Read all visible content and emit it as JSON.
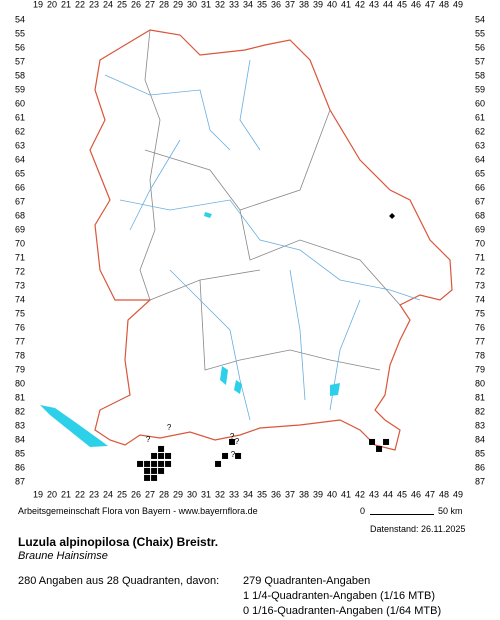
{
  "grid": {
    "x_labels": [
      19,
      20,
      21,
      22,
      23,
      24,
      25,
      26,
      27,
      28,
      29,
      30,
      31,
      32,
      33,
      34,
      35,
      36,
      37,
      38,
      39,
      40,
      41,
      42,
      43,
      44,
      45,
      46,
      47,
      48,
      49
    ],
    "y_labels": [
      54,
      55,
      56,
      57,
      58,
      59,
      60,
      61,
      62,
      63,
      64,
      65,
      66,
      67,
      68,
      69,
      70,
      71,
      72,
      73,
      74,
      75,
      76,
      77,
      78,
      79,
      80,
      81,
      82,
      83,
      84,
      85,
      86,
      87
    ]
  },
  "points": [
    [
      26.29,
      85.71
    ],
    [
      26.79,
      85.71
    ],
    [
      27.29,
      85.71
    ],
    [
      27.79,
      85.71
    ],
    [
      28.29,
      85.71
    ],
    [
      26.79,
      86.21
    ],
    [
      27.29,
      86.21
    ],
    [
      27.79,
      86.21
    ],
    [
      26.79,
      86.71
    ],
    [
      27.29,
      86.71
    ],
    [
      27.29,
      85.14
    ],
    [
      27.79,
      85.14
    ],
    [
      28.29,
      85.14
    ],
    [
      27.79,
      84.64
    ],
    [
      31.86,
      85.71
    ],
    [
      32.36,
      85.14
    ],
    [
      32.86,
      84.14
    ],
    [
      33.29,
      85.14
    ],
    [
      42.86,
      84.14
    ],
    [
      43.86,
      84.14
    ],
    [
      43.36,
      84.64
    ]
  ],
  "uncertain": [
    [
      26.86,
      84.0
    ],
    [
      28.36,
      83.14
    ],
    [
      32.86,
      83.79
    ],
    [
      33.21,
      84.14
    ],
    [
      32.93,
      85.07
    ]
  ],
  "uncertain_symbol": "?",
  "other_points": [
    [
      44.29,
      68.0
    ]
  ],
  "credit": "Arbeitsgemeinschaft Flora von Bayern - www.bayernflora.de",
  "scale": {
    "start": "0",
    "end": "50 km"
  },
  "date": "Datenstand: 26.11.2025",
  "title": "Luzula alpinopilosa (Chaix) Breistr.",
  "subtitle": "Braune Hainsimse",
  "stats": {
    "total": "280 Angaben aus 28 Quadranten, davon:",
    "lines": [
      "279 Quadranten-Angaben",
      "1 1/4-Quadranten-Angaben (1/16 MTB)",
      "0 1/16-Quadranten-Angaben (1/64 MTB)"
    ]
  }
}
